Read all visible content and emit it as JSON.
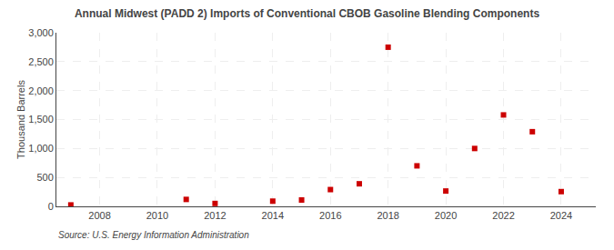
{
  "chart_data": {
    "type": "scatter",
    "title": "Annual Midwest (PADD 2) Imports of Conventional CBOB Gasoline Blending Components",
    "ylabel": "Thousand Barrels",
    "annotations": [
      "Source: U.S. Energy Information Administration"
    ],
    "x": [
      2007,
      2011,
      2012,
      2014,
      2015,
      2016,
      2017,
      2018,
      2019,
      2020,
      2021,
      2022,
      2023,
      2024
    ],
    "values": [
      25,
      120,
      50,
      90,
      110,
      290,
      390,
      2750,
      700,
      265,
      1000,
      1580,
      1290,
      255
    ],
    "color": "#cc0000",
    "marker": "square",
    "xlim": [
      2006.5,
      2025.2
    ],
    "ylim": [
      0,
      3000
    ],
    "xticks": [
      2008,
      2010,
      2012,
      2014,
      2016,
      2018,
      2020,
      2022,
      2024
    ],
    "yticks": [
      0,
      500,
      {
        "value": 1000,
        "label": "1,000"
      },
      {
        "value": 1500,
        "label": "1,500"
      },
      {
        "value": 2000,
        "label": "2,000"
      },
      {
        "value": 2500,
        "label": "2,500"
      },
      {
        "value": 3000,
        "label": "3,000"
      }
    ],
    "grid": true
  }
}
